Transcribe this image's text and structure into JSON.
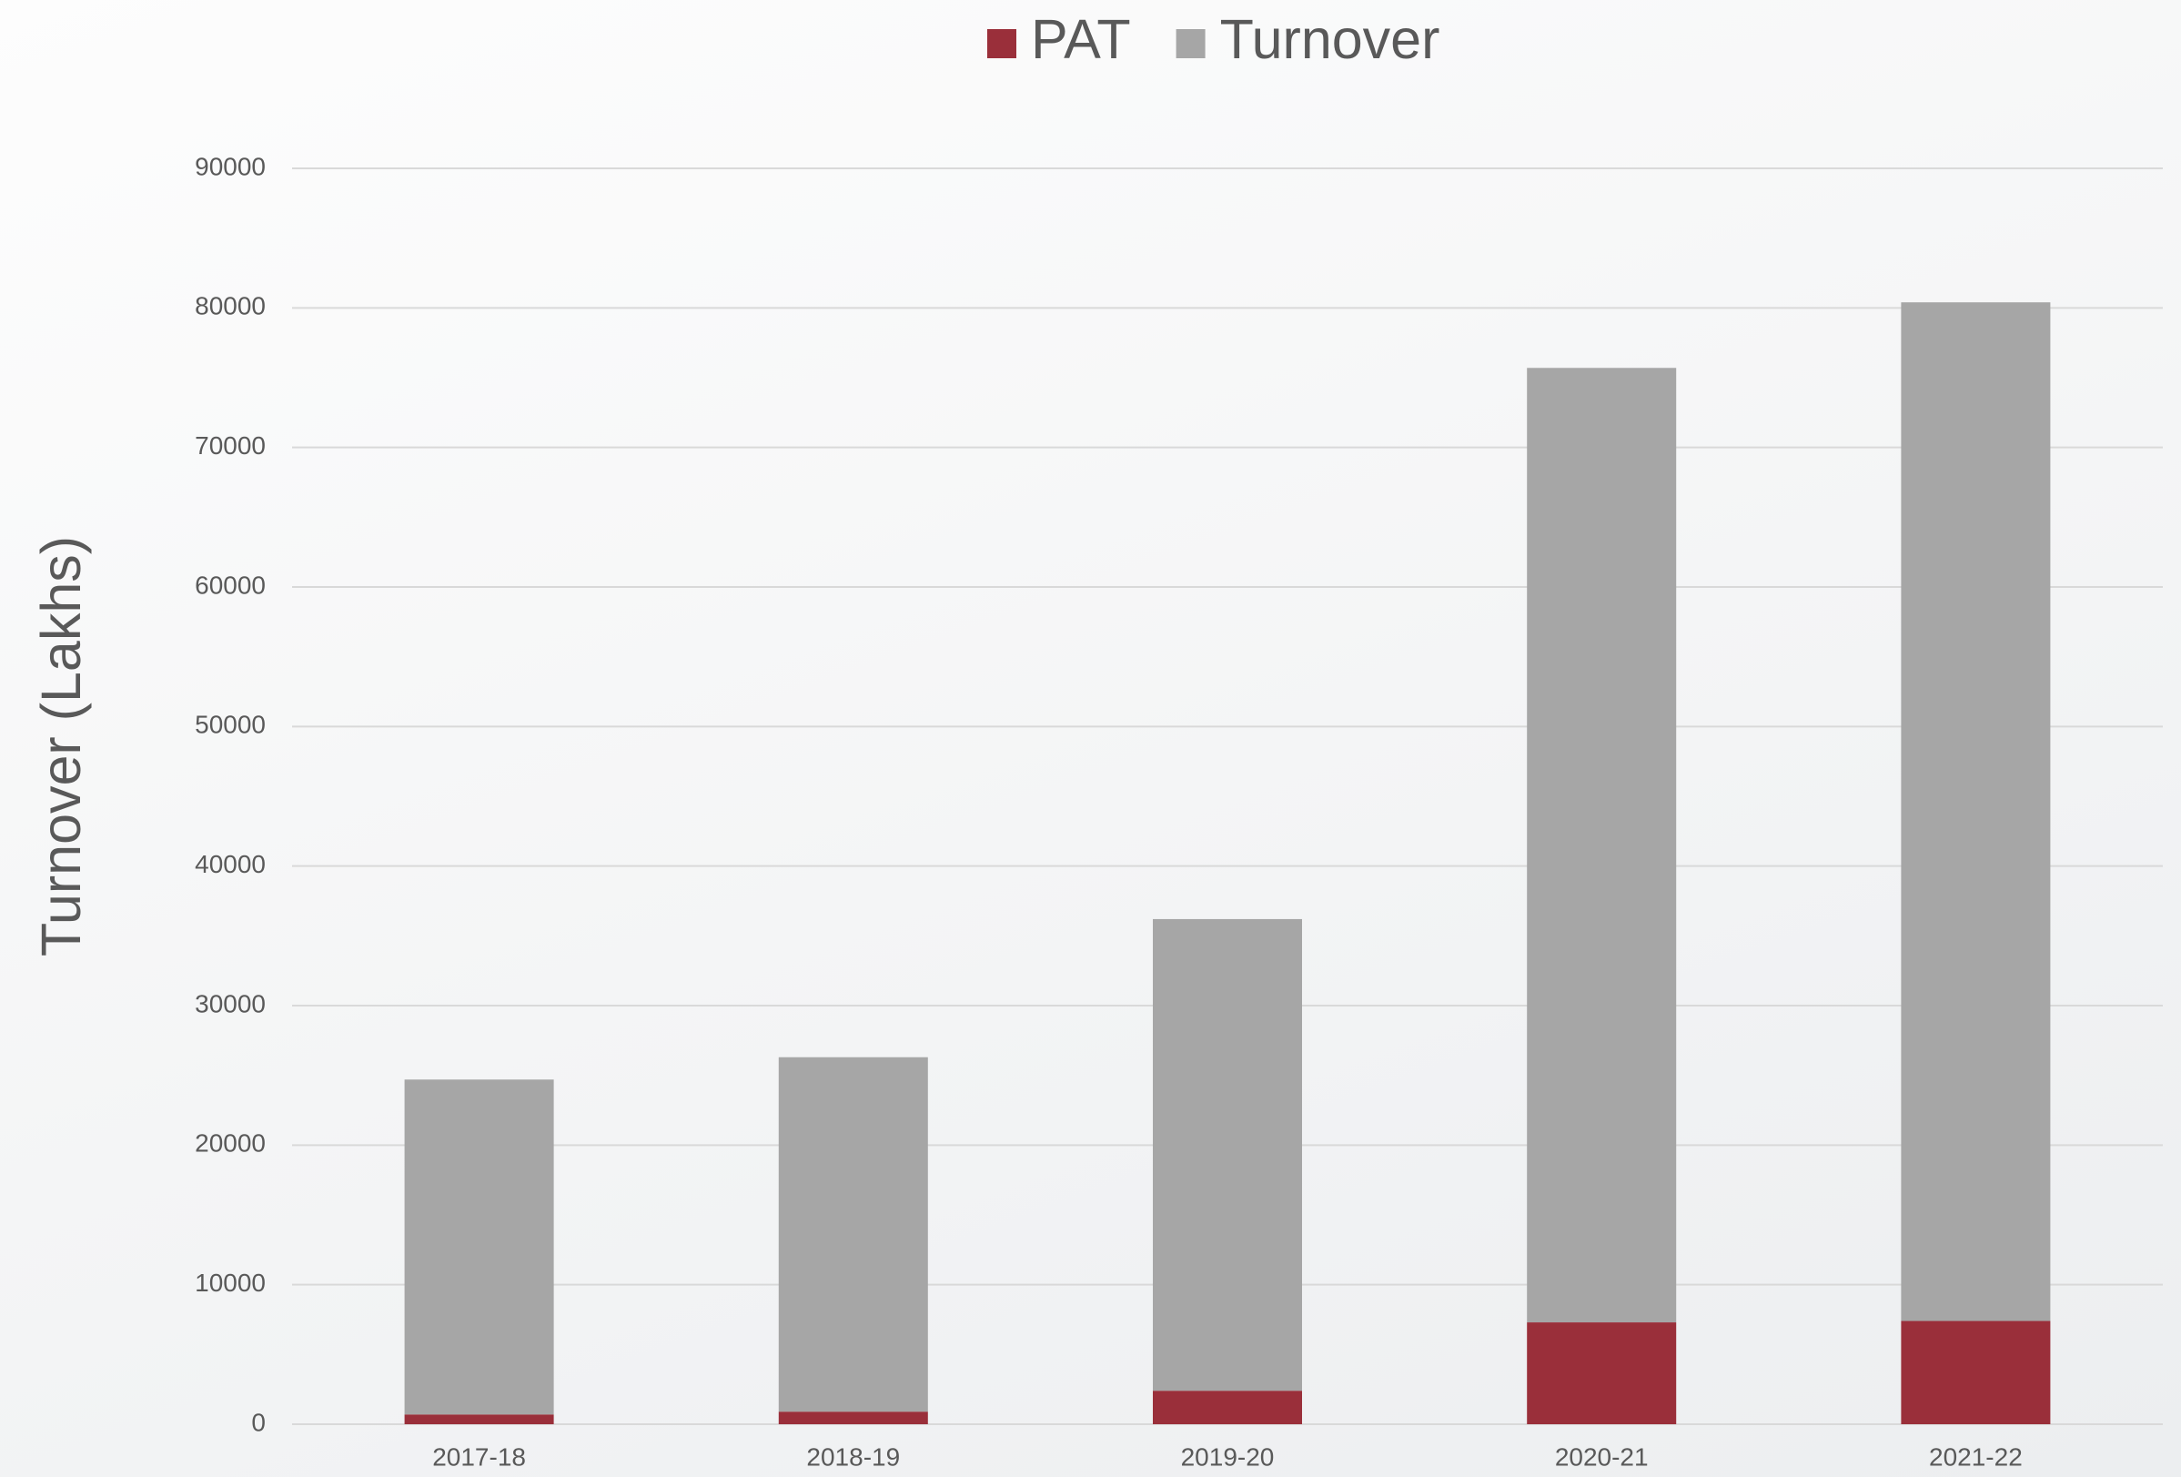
{
  "chart_data": {
    "type": "stacked-bar",
    "y_label": "Turnover (Lakhs)",
    "categories": [
      "2017-18",
      "2018-19",
      "2019-20",
      "2020-21",
      "2021-22"
    ],
    "series": [
      {
        "name": "PAT",
        "color": "#9a2f3a",
        "values": [
          700,
          900,
          2400,
          7300,
          7400
        ]
      },
      {
        "name": "Turnover",
        "color": "#a6a6a6",
        "values": [
          24000,
          25400,
          33800,
          68400,
          73000
        ]
      }
    ],
    "ylim": [
      0,
      90000
    ],
    "yticks": [
      0,
      10000,
      20000,
      30000,
      40000,
      50000,
      60000,
      70000,
      80000,
      90000
    ],
    "grid": true,
    "legend": "top"
  }
}
